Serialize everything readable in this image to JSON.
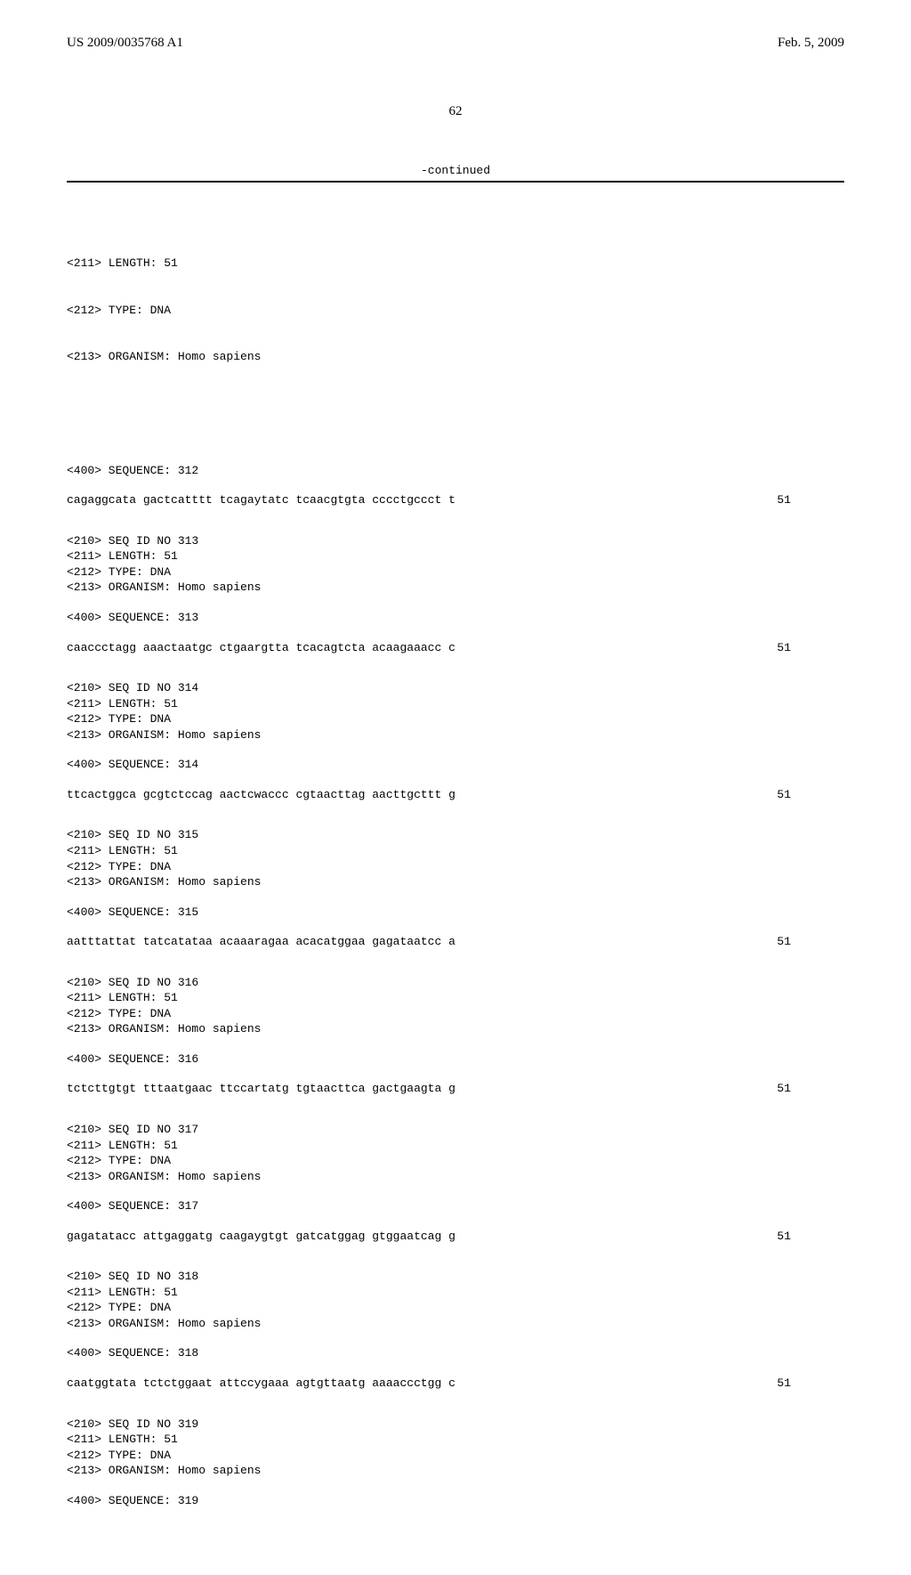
{
  "header": {
    "pub_number": "US 2009/0035768 A1",
    "pub_date": "Feb. 5, 2009"
  },
  "page_number": "62",
  "continued_label": "-continued",
  "first_meta": [
    "<211> LENGTH: 51",
    "<212> TYPE: DNA",
    "<213> ORGANISM: Homo sapiens"
  ],
  "entries": [
    {
      "seq_label": "<400> SEQUENCE: 312",
      "sequence": "cagaggcata gactcatttt tcagaytatc tcaacgtgta cccctgccct t",
      "length": "51",
      "next_meta": [
        "<210> SEQ ID NO 313",
        "<211> LENGTH: 51",
        "<212> TYPE: DNA",
        "<213> ORGANISM: Homo sapiens"
      ]
    },
    {
      "seq_label": "<400> SEQUENCE: 313",
      "sequence": "caaccctagg aaactaatgc ctgaargtta tcacagtcta acaagaaacc c",
      "length": "51",
      "next_meta": [
        "<210> SEQ ID NO 314",
        "<211> LENGTH: 51",
        "<212> TYPE: DNA",
        "<213> ORGANISM: Homo sapiens"
      ]
    },
    {
      "seq_label": "<400> SEQUENCE: 314",
      "sequence": "ttcactggca gcgtctccag aactcwaccc cgtaacttag aacttgcttt g",
      "length": "51",
      "next_meta": [
        "<210> SEQ ID NO 315",
        "<211> LENGTH: 51",
        "<212> TYPE: DNA",
        "<213> ORGANISM: Homo sapiens"
      ]
    },
    {
      "seq_label": "<400> SEQUENCE: 315",
      "sequence": "aatttattat tatcatataa acaaaragaa acacatggaa gagataatcc a",
      "length": "51",
      "next_meta": [
        "<210> SEQ ID NO 316",
        "<211> LENGTH: 51",
        "<212> TYPE: DNA",
        "<213> ORGANISM: Homo sapiens"
      ]
    },
    {
      "seq_label": "<400> SEQUENCE: 316",
      "sequence": "tctcttgtgt tttaatgaac ttccartatg tgtaacttca gactgaagta g",
      "length": "51",
      "next_meta": [
        "<210> SEQ ID NO 317",
        "<211> LENGTH: 51",
        "<212> TYPE: DNA",
        "<213> ORGANISM: Homo sapiens"
      ]
    },
    {
      "seq_label": "<400> SEQUENCE: 317",
      "sequence": "gagatatacc attgaggatg caagaygtgt gatcatggag gtggaatcag g",
      "length": "51",
      "next_meta": [
        "<210> SEQ ID NO 318",
        "<211> LENGTH: 51",
        "<212> TYPE: DNA",
        "<213> ORGANISM: Homo sapiens"
      ]
    },
    {
      "seq_label": "<400> SEQUENCE: 318",
      "sequence": "caatggtata tctctggaat attccygaaa agtgttaatg aaaaccctgg c",
      "length": "51",
      "next_meta": [
        "<210> SEQ ID NO 319",
        "<211> LENGTH: 51",
        "<212> TYPE: DNA",
        "<213> ORGANISM: Homo sapiens"
      ]
    },
    {
      "seq_label": "<400> SEQUENCE: 319",
      "sequence": "",
      "length": "",
      "next_meta": []
    }
  ],
  "style": {
    "background_color": "#ffffff",
    "text_color": "#000000",
    "header_font": "Times New Roman",
    "body_font": "Courier New",
    "header_fontsize": 15,
    "body_fontsize": 13,
    "rule_color": "#000000"
  }
}
